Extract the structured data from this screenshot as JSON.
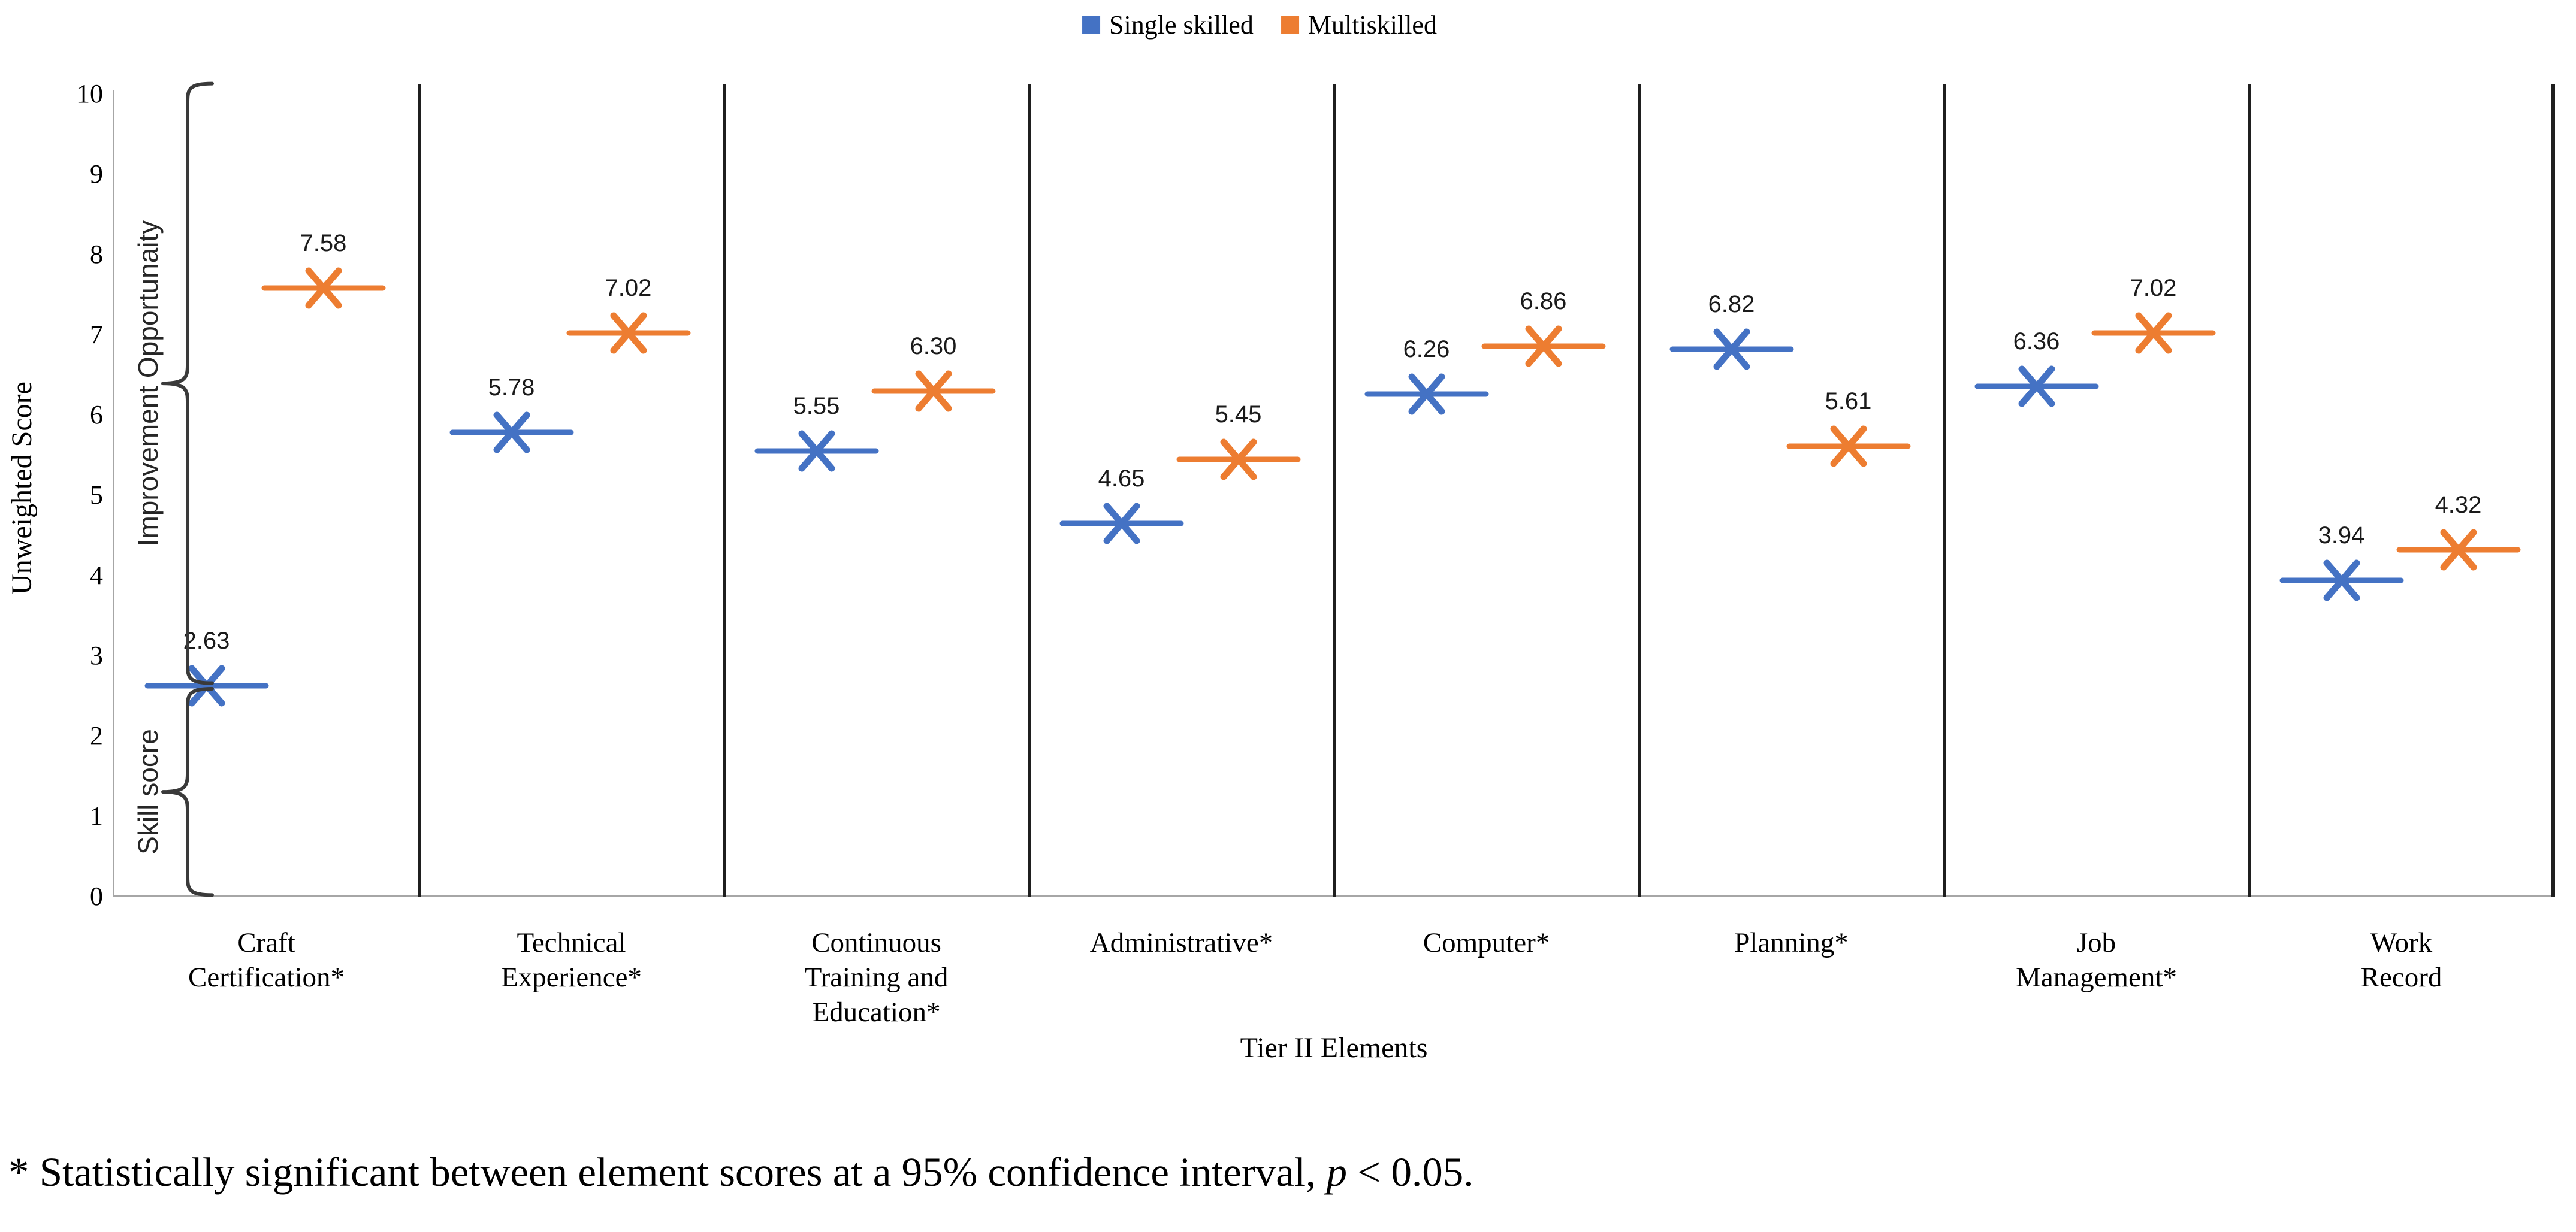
{
  "legend": {
    "items": [
      {
        "label": "Single skilled",
        "color": "#4472C4"
      },
      {
        "label": "Multiskilled",
        "color": "#ED7D31"
      }
    ]
  },
  "axes": {
    "y_title": "Unweighted Score",
    "x_title": "Tier II Elements"
  },
  "footnote": {
    "prefix": "* Statistically significant between element scores at a 95% confidence interval, ",
    "p_symbol": "p",
    "suffix": " < 0.05."
  },
  "chart_data": {
    "type": "scatter",
    "title": "",
    "xlabel": "Tier II Elements",
    "ylabel": "Unweighted Score",
    "ylim": [
      0,
      10
    ],
    "yticks": [
      0,
      1,
      2,
      3,
      4,
      5,
      6,
      7,
      8,
      9,
      10
    ],
    "grid": false,
    "legend_position": "top",
    "marker": "x-with-horizontal-line",
    "categories": [
      "Craft Certification*",
      "Technical Experience*",
      "Continuous Training and Education*",
      "Administrative*",
      "Computer*",
      "Planning*",
      "Job Management*",
      "Work Record"
    ],
    "category_label_lines": [
      [
        "Craft",
        "Certification*"
      ],
      [
        "Technical",
        "Experience*"
      ],
      [
        "Continuous",
        "Training and",
        "Education*"
      ],
      [
        "Administrative*"
      ],
      [
        "Computer*"
      ],
      [
        "Planning*"
      ],
      [
        "Job",
        "Management*"
      ],
      [
        "Work",
        "Record"
      ]
    ],
    "series": [
      {
        "name": "Single skilled",
        "color": "#4472C4",
        "values": [
          2.63,
          5.78,
          5.55,
          4.65,
          6.26,
          6.82,
          6.36,
          3.94
        ],
        "labels": [
          "2.63",
          "5.78",
          "5.55",
          "4.65",
          "6.26",
          "6.82",
          "6.36",
          "3.94"
        ]
      },
      {
        "name": "Multiskilled",
        "color": "#ED7D31",
        "values": [
          7.58,
          7.02,
          6.3,
          5.45,
          6.86,
          5.61,
          7.02,
          4.32
        ],
        "labels": [
          "7.58",
          "7.02",
          "6.30",
          "5.45",
          "6.86",
          "5.61",
          "7.02",
          "4.32"
        ]
      }
    ],
    "annotations": {
      "braces": [
        {
          "label": "Improvement Opportunaity",
          "score_from": 2.66,
          "score_to": 10.13
        },
        {
          "label": "Skill socre",
          "score_from": 0.02,
          "score_to": 2.59
        }
      ],
      "footnote_text": "* Statistically significant between element scores at a 95% confidence interval, p < 0.05."
    }
  }
}
